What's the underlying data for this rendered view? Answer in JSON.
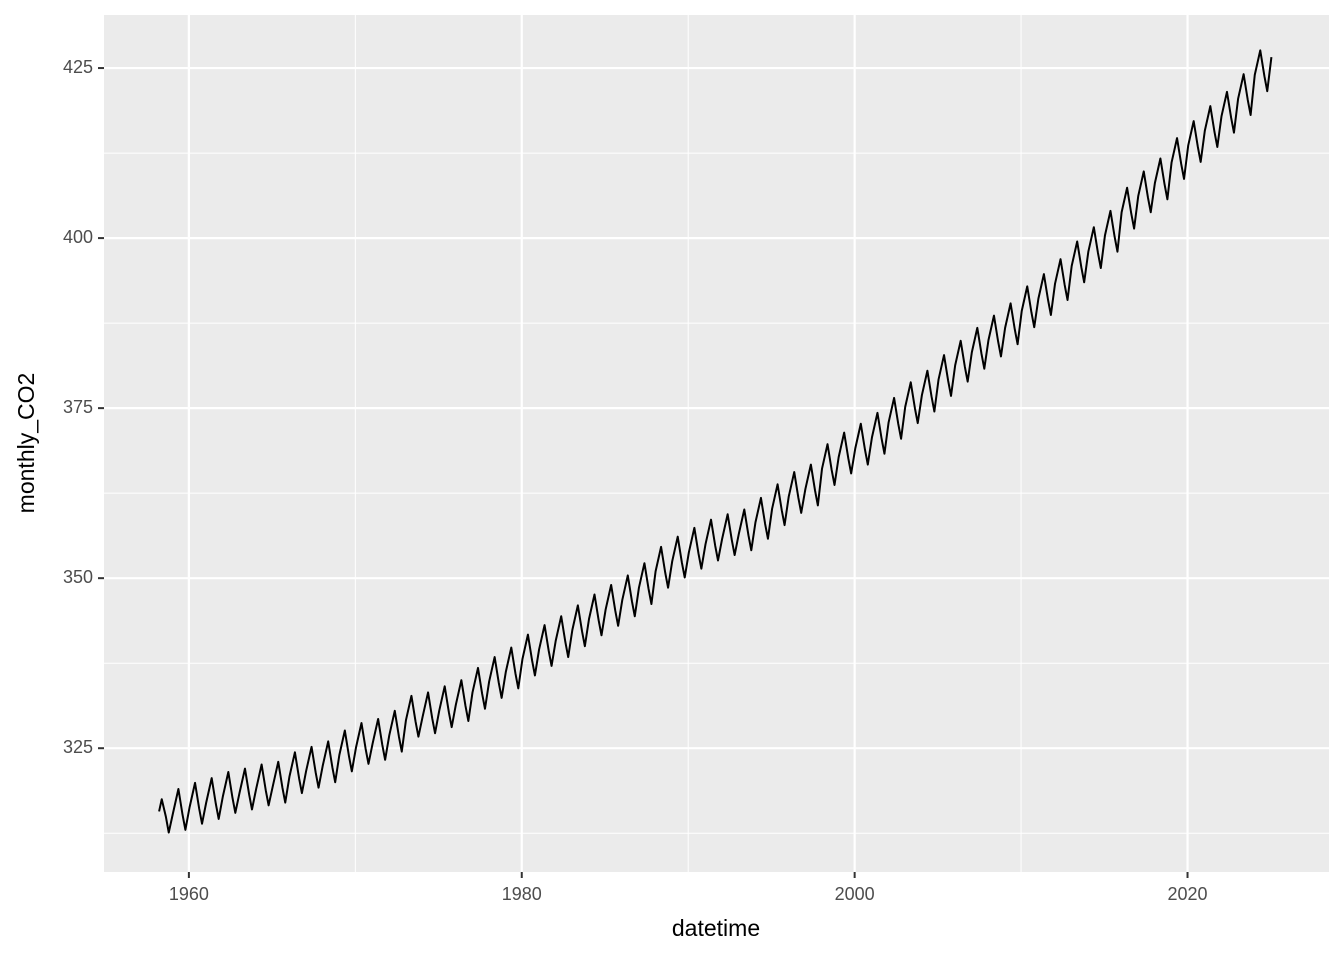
{
  "chart_data": {
    "type": "line",
    "x_label": "datetime",
    "y_label": "monthly_CO2",
    "color": "#000000",
    "xlim": [
      1954.9,
      2028.5
    ],
    "xticks": [
      1960,
      1980,
      2000,
      2020
    ],
    "xminor": [
      1970,
      1990,
      2010
    ],
    "ylim": [
      306.8,
      432.8
    ],
    "yticks": [
      325,
      350,
      375,
      400,
      425
    ],
    "yminor": [
      312.5,
      337.5,
      362.5,
      387.5,
      412.5
    ],
    "grid": true,
    "x": [
      1958.21,
      1958.37,
      1958.62,
      1958.79,
      1959.04,
      1959.37,
      1959.62,
      1959.79,
      1960.04,
      1960.37,
      1960.62,
      1960.79,
      1961.04,
      1961.37,
      1961.62,
      1961.79,
      1962.04,
      1962.37,
      1962.62,
      1962.79,
      1963.04,
      1963.37,
      1963.62,
      1963.79,
      1964.04,
      1964.37,
      1964.62,
      1964.79,
      1965.04,
      1965.37,
      1965.62,
      1965.79,
      1966.04,
      1966.37,
      1966.62,
      1966.79,
      1967.04,
      1967.37,
      1967.62,
      1967.79,
      1968.04,
      1968.37,
      1968.62,
      1968.79,
      1969.04,
      1969.37,
      1969.62,
      1969.79,
      1970.04,
      1970.37,
      1970.62,
      1970.79,
      1971.04,
      1971.37,
      1971.62,
      1971.79,
      1972.04,
      1972.37,
      1972.62,
      1972.79,
      1973.04,
      1973.37,
      1973.62,
      1973.79,
      1974.04,
      1974.37,
      1974.62,
      1974.79,
      1975.04,
      1975.37,
      1975.62,
      1975.79,
      1976.04,
      1976.37,
      1976.62,
      1976.79,
      1977.04,
      1977.37,
      1977.62,
      1977.79,
      1978.04,
      1978.37,
      1978.62,
      1978.79,
      1979.04,
      1979.37,
      1979.62,
      1979.79,
      1980.04,
      1980.37,
      1980.62,
      1980.79,
      1981.04,
      1981.37,
      1981.62,
      1981.79,
      1982.04,
      1982.37,
      1982.62,
      1982.79,
      1983.04,
      1983.37,
      1983.62,
      1983.79,
      1984.04,
      1984.37,
      1984.62,
      1984.79,
      1985.04,
      1985.37,
      1985.62,
      1985.79,
      1986.04,
      1986.37,
      1986.62,
      1986.79,
      1987.04,
      1987.37,
      1987.62,
      1987.79,
      1988.04,
      1988.37,
      1988.62,
      1988.79,
      1989.04,
      1989.37,
      1989.62,
      1989.79,
      1990.04,
      1990.37,
      1990.62,
      1990.79,
      1991.04,
      1991.37,
      1991.62,
      1991.79,
      1992.04,
      1992.37,
      1992.62,
      1992.79,
      1993.04,
      1993.37,
      1993.62,
      1993.79,
      1994.04,
      1994.37,
      1994.62,
      1994.79,
      1995.04,
      1995.37,
      1995.62,
      1995.79,
      1996.04,
      1996.37,
      1996.62,
      1996.79,
      1997.04,
      1997.37,
      1997.62,
      1997.79,
      1998.04,
      1998.37,
      1998.62,
      1998.79,
      1999.04,
      1999.37,
      1999.62,
      1999.79,
      2000.04,
      2000.37,
      2000.62,
      2000.79,
      2001.04,
      2001.37,
      2001.62,
      2001.79,
      2002.04,
      2002.37,
      2002.62,
      2002.79,
      2003.04,
      2003.37,
      2003.62,
      2003.79,
      2004.04,
      2004.37,
      2004.62,
      2004.79,
      2005.04,
      2005.37,
      2005.62,
      2005.79,
      2006.04,
      2006.37,
      2006.62,
      2006.79,
      2007.04,
      2007.37,
      2007.62,
      2007.79,
      2008.04,
      2008.37,
      2008.62,
      2008.79,
      2009.04,
      2009.37,
      2009.62,
      2009.79,
      2010.04,
      2010.37,
      2010.62,
      2010.79,
      2011.04,
      2011.37,
      2011.62,
      2011.79,
      2012.04,
      2012.37,
      2012.62,
      2012.79,
      2013.04,
      2013.37,
      2013.62,
      2013.79,
      2014.04,
      2014.37,
      2014.62,
      2014.79,
      2015.04,
      2015.37,
      2015.62,
      2015.79,
      2016.04,
      2016.37,
      2016.62,
      2016.79,
      2017.04,
      2017.37,
      2017.62,
      2017.79,
      2018.04,
      2018.37,
      2018.62,
      2018.79,
      2019.04,
      2019.37,
      2019.62,
      2019.79,
      2020.04,
      2020.37,
      2020.62,
      2020.79,
      2021.04,
      2021.37,
      2021.62,
      2021.79,
      2022.04,
      2022.37,
      2022.62,
      2022.79,
      2023.04,
      2023.37,
      2023.62,
      2023.79,
      2024.04,
      2024.37,
      2024.62,
      2024.79,
      2025.04
    ],
    "values": [
      315.7,
      317.5,
      314.9,
      312.6,
      315.4,
      319.0,
      315.2,
      313.0,
      316.3,
      319.9,
      316.1,
      313.9,
      317.0,
      320.6,
      316.8,
      314.6,
      317.9,
      321.5,
      317.7,
      315.5,
      318.4,
      322.0,
      318.2,
      316.0,
      319.0,
      322.6,
      318.8,
      316.6,
      319.4,
      323.0,
      319.2,
      317.0,
      320.8,
      324.4,
      320.6,
      318.4,
      321.6,
      325.2,
      321.4,
      319.2,
      322.4,
      326.0,
      322.2,
      320.0,
      324.0,
      327.6,
      323.8,
      321.6,
      325.1,
      328.7,
      324.9,
      322.7,
      325.7,
      329.3,
      325.5,
      323.3,
      326.9,
      330.5,
      326.7,
      324.5,
      329.1,
      332.7,
      328.9,
      326.7,
      329.6,
      333.2,
      329.4,
      327.2,
      330.5,
      334.1,
      330.3,
      328.1,
      331.4,
      335.0,
      331.2,
      329.0,
      333.2,
      336.8,
      333.0,
      330.8,
      334.8,
      338.4,
      334.6,
      332.4,
      336.2,
      339.8,
      336.0,
      333.8,
      338.1,
      341.7,
      337.9,
      335.7,
      339.5,
      343.1,
      339.3,
      337.1,
      340.8,
      344.4,
      340.6,
      338.4,
      342.4,
      346.0,
      342.2,
      340.0,
      344.0,
      347.6,
      343.8,
      341.6,
      345.4,
      349.0,
      345.2,
      343.0,
      346.8,
      350.4,
      346.6,
      344.4,
      348.6,
      352.2,
      348.4,
      346.2,
      351.0,
      354.6,
      350.8,
      348.6,
      352.5,
      356.1,
      352.3,
      350.1,
      353.8,
      357.4,
      353.6,
      351.4,
      355.0,
      358.6,
      354.8,
      352.6,
      355.8,
      359.4,
      355.6,
      353.4,
      356.5,
      360.1,
      356.3,
      354.1,
      358.2,
      361.8,
      358.0,
      355.8,
      360.2,
      363.8,
      360.0,
      357.8,
      362.0,
      365.6,
      361.8,
      359.6,
      363.1,
      366.7,
      362.9,
      360.7,
      366.1,
      369.7,
      365.9,
      363.7,
      367.8,
      371.4,
      367.6,
      365.4,
      369.1,
      372.7,
      368.9,
      366.7,
      370.7,
      374.3,
      370.5,
      368.3,
      372.9,
      376.5,
      372.7,
      370.5,
      375.2,
      378.8,
      375.0,
      372.8,
      376.9,
      380.5,
      376.7,
      374.5,
      379.2,
      382.8,
      379.0,
      376.8,
      381.3,
      384.9,
      381.1,
      378.9,
      383.2,
      386.8,
      383.0,
      380.8,
      385.0,
      388.6,
      384.8,
      382.6,
      386.8,
      390.4,
      386.6,
      384.4,
      389.3,
      392.9,
      389.1,
      386.9,
      391.1,
      394.7,
      390.9,
      388.7,
      393.3,
      396.9,
      393.1,
      390.9,
      395.9,
      399.5,
      395.7,
      393.5,
      398.0,
      401.6,
      397.8,
      395.6,
      400.4,
      404.0,
      400.2,
      398.0,
      403.8,
      407.4,
      403.6,
      401.4,
      406.2,
      409.8,
      406.0,
      403.8,
      408.1,
      411.7,
      407.9,
      405.7,
      411.1,
      414.7,
      410.9,
      408.7,
      413.6,
      417.2,
      413.4,
      411.2,
      415.8,
      419.4,
      415.6,
      413.4,
      417.9,
      421.5,
      417.7,
      415.5,
      420.5,
      424.1,
      420.3,
      418.1,
      424.0,
      427.6,
      423.8,
      421.6,
      426.6
    ]
  }
}
